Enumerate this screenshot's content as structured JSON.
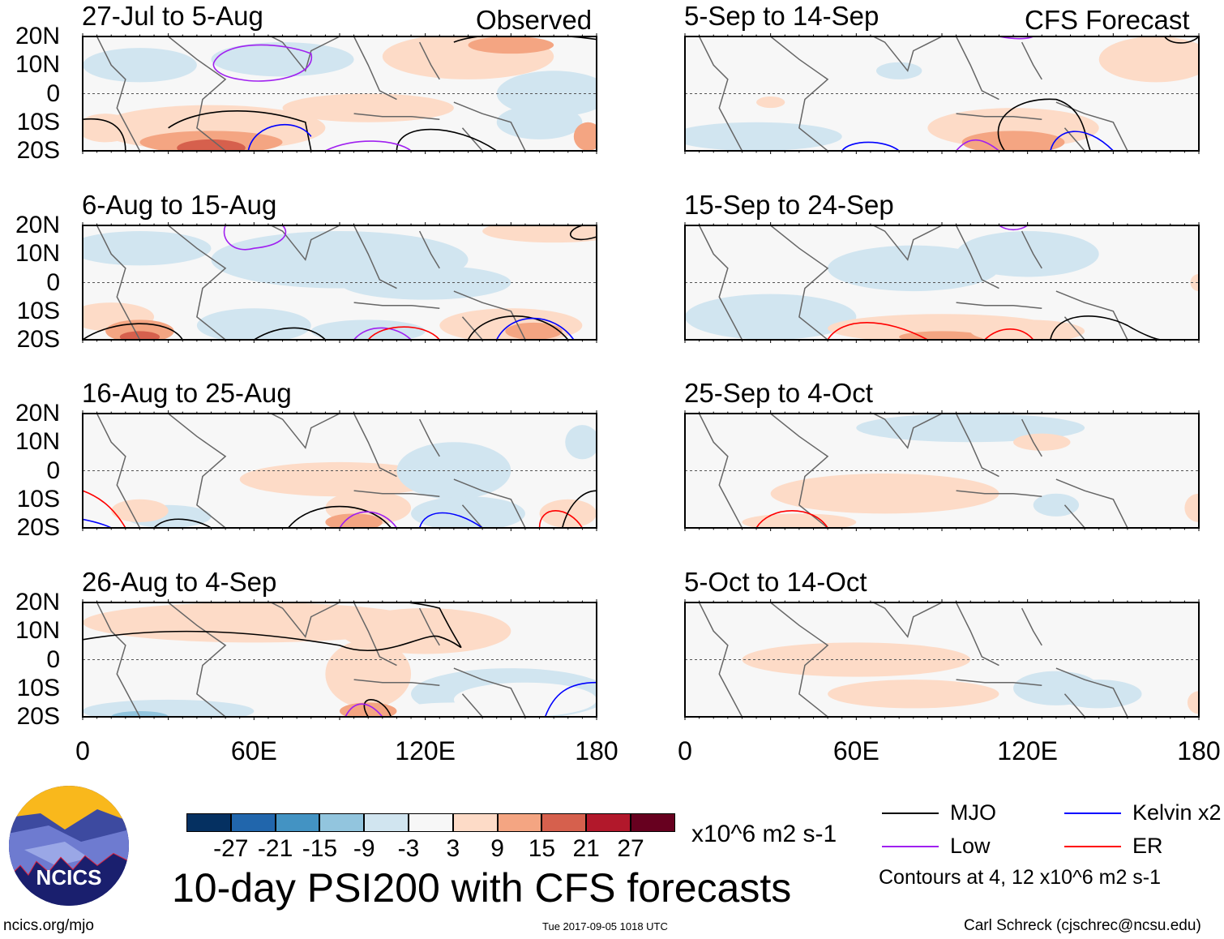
{
  "header": {
    "left_label": "Observed",
    "right_label": "CFS Forecast"
  },
  "lat_ticks": [
    "20N",
    "10N",
    "0",
    "10S",
    "20S"
  ],
  "lon_ticks": [
    "0",
    "60E",
    "120E",
    "180"
  ],
  "panels": [
    {
      "title": "27-Jul to 5-Aug",
      "column": "observed"
    },
    {
      "title": "6-Aug to 15-Aug",
      "column": "observed"
    },
    {
      "title": "16-Aug to 25-Aug",
      "column": "observed"
    },
    {
      "title": "26-Aug to 4-Sep",
      "column": "observed"
    },
    {
      "title": "5-Sep to 14-Sep",
      "column": "forecast"
    },
    {
      "title": "15-Sep to 24-Sep",
      "column": "forecast"
    },
    {
      "title": "25-Sep to 4-Oct",
      "column": "forecast"
    },
    {
      "title": "5-Oct to 14-Oct",
      "column": "forecast"
    }
  ],
  "colorbar": {
    "labels": [
      "-27",
      "-21",
      "-15",
      "-9",
      "-3",
      "3",
      "9",
      "15",
      "21",
      "27"
    ],
    "colors": [
      "#053061",
      "#2166ac",
      "#4393c3",
      "#92c5de",
      "#d1e5f0",
      "#f7f7f7",
      "#fddbc7",
      "#f4a582",
      "#d6604d",
      "#b2182b",
      "#67001f"
    ],
    "units": "x10^6 m2 s-1"
  },
  "title": "10-day PSI200 with CFS forecasts",
  "legend": {
    "items": [
      {
        "label": "MJO",
        "color": "#000000"
      },
      {
        "label": "Kelvin x2",
        "color": "#0000ff"
      },
      {
        "label": "Low",
        "color": "#a020f0"
      },
      {
        "label": "ER",
        "color": "#ff0000"
      }
    ],
    "note": "Contours at 4, 12 x10^6 m2 s-1"
  },
  "footer": {
    "left": "ncics.org/mjo",
    "center": "Tue 2017-09-05 1018 UTC",
    "right": "Carl Schreck (cjschrec@ncsu.edu)"
  },
  "logo": {
    "text": "NCICS"
  }
}
